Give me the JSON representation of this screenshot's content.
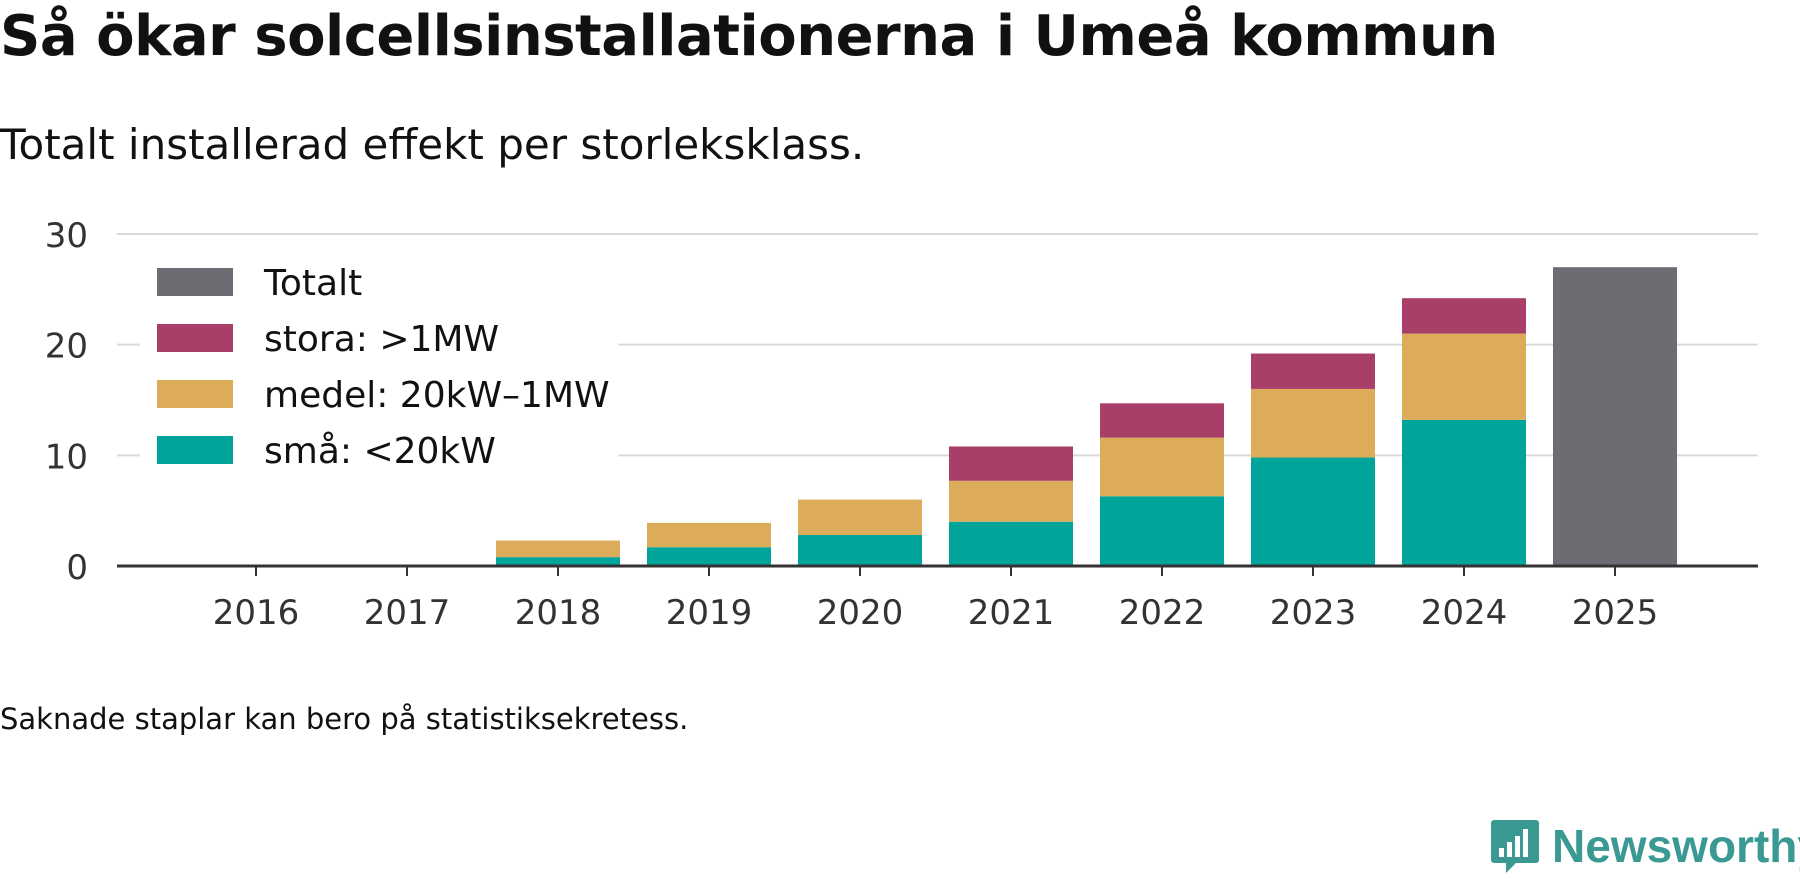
{
  "title": "Så ökar solcellsinstallationerna i Umeå kommun",
  "subtitle": "Totalt installerad effekt per storleksklass.",
  "footnote": "Saknade staplar kan bero på statistiksekretess.",
  "brand": {
    "name": "Newsworthy",
    "icon": "newsworthy-logo-icon",
    "color": "#3a9a93"
  },
  "colors": {
    "sma": "#00a49b",
    "medel": "#dcac5a",
    "stora": "#a83f68",
    "totalt": "#6d6c72",
    "axis": "#333333",
    "grid": "#d9d9d9"
  },
  "chart_data": {
    "type": "bar",
    "stacked": true,
    "title": "Så ökar solcellsinstallationerna i Umeå kommun",
    "subtitle": "Totalt installerad effekt per storleksklass.",
    "xlabel": "",
    "ylabel": "",
    "ylim": [
      0,
      30
    ],
    "yticks": [
      "0",
      "10",
      "20",
      "30"
    ],
    "grid": true,
    "legend_position": "top-left",
    "categories": [
      "2016",
      "2017",
      "2018",
      "2019",
      "2020",
      "2021",
      "2022",
      "2023",
      "2024",
      "2025"
    ],
    "series": [
      {
        "key": "sma",
        "name": "små: <20kW",
        "color": "#00a49b",
        "values": [
          0,
          0,
          0.8,
          1.7,
          2.8,
          4.0,
          6.3,
          9.8,
          13.2,
          null
        ]
      },
      {
        "key": "medel",
        "name": "medel: 20kW–1MW",
        "color": "#dcac5a",
        "values": [
          0,
          0,
          1.5,
          2.2,
          3.2,
          3.7,
          5.3,
          6.2,
          7.8,
          null
        ]
      },
      {
        "key": "stora",
        "name": "stora: >1MW",
        "color": "#a83f68",
        "values": [
          0,
          0,
          0,
          0,
          0,
          3.1,
          3.1,
          3.2,
          3.2,
          null
        ]
      },
      {
        "key": "totalt",
        "name": "Totalt",
        "color": "#6d6c72",
        "values": [
          null,
          null,
          null,
          null,
          null,
          null,
          null,
          null,
          null,
          27.0
        ]
      }
    ],
    "legend_order": [
      "totalt",
      "stora",
      "medel",
      "sma"
    ]
  }
}
